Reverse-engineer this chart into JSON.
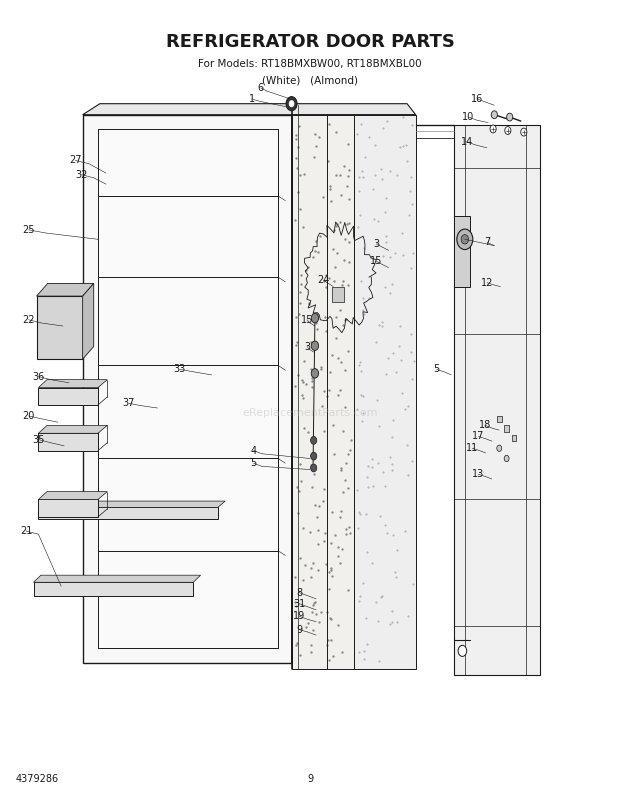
{
  "title": "REFRIGERATOR DOOR PARTS",
  "subtitle1": "For Models: RT18BMXBW00, RT18BMXBL00",
  "subtitle2": "(White)   (Almond)",
  "model_num": "4379286",
  "page_num": "9",
  "bg_color": "#ffffff",
  "line_color": "#1a1a1a",
  "text_color": "#1a1a1a",
  "title_fontsize": 13,
  "subtitle_fontsize": 7.5,
  "label_fontsize": 7,
  "footer_fontsize": 7,
  "watermark": "eReplacementParts.com"
}
